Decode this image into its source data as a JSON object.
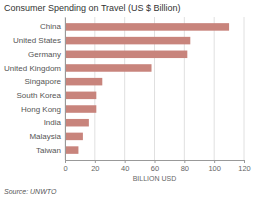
{
  "chart_data": {
    "type": "bar",
    "orientation": "horizontal",
    "title": "Consumer Spending on Travel (US $ Billion)",
    "source": "Source: UNWTO",
    "xlabel": "BILLION USD",
    "categories": [
      "China",
      "United States",
      "Germany",
      "United Kingdom",
      "Singapore",
      "South Korea",
      "Hong Kong",
      "India",
      "Malaysia",
      "Taiwan"
    ],
    "values": [
      110,
      84,
      82,
      58,
      25,
      21,
      21,
      16,
      12,
      9
    ],
    "color": "#c8847c",
    "xlim": [
      0,
      120
    ],
    "xticks": [
      0,
      20,
      40,
      60,
      80,
      100,
      120
    ],
    "grid": true
  }
}
